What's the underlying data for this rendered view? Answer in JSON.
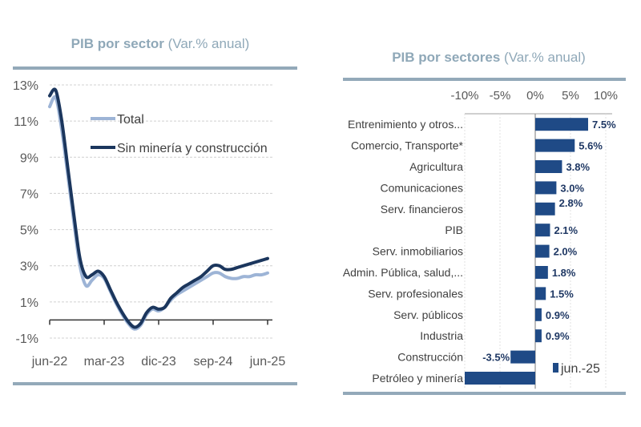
{
  "chart_data": [
    {
      "type": "line",
      "title_bold": "PIB por sector",
      "title_rest": " (Var.% anual)",
      "xlabel": "",
      "ylabel": "",
      "ylim": [
        -1,
        13
      ],
      "yticks": [
        -1,
        1,
        3,
        5,
        7,
        9,
        11,
        13
      ],
      "ytick_labels": [
        "-1%",
        "1%",
        "3%",
        "5%",
        "7%",
        "9%",
        "11%",
        "13%"
      ],
      "xtick_labels": [
        "jun-22",
        "mar-23",
        "dic-23",
        "sep-24",
        "jun-25"
      ],
      "x_start": "jun-22",
      "x_end": "jun-25",
      "x_frequency": "monthly",
      "grid": true,
      "legend_position": "top-center",
      "series": [
        {
          "name": "Total",
          "color": "#9db4d6",
          "values": [
            11.8,
            12.3,
            10.5,
            8.0,
            5.4,
            3.0,
            1.9,
            2.2,
            2.5,
            2.3,
            1.6,
            0.9,
            0.3,
            -0.2,
            -0.5,
            -0.3,
            0.3,
            0.6,
            0.5,
            0.7,
            1.1,
            1.4,
            1.6,
            1.8,
            2.0,
            2.2,
            2.4,
            2.6,
            2.6,
            2.4,
            2.3,
            2.3,
            2.4,
            2.4,
            2.5,
            2.5,
            2.6
          ]
        },
        {
          "name": "Sin minería y construcción",
          "color": "#1b365d",
          "values": [
            12.4,
            12.7,
            11.0,
            8.4,
            5.8,
            3.4,
            2.4,
            2.5,
            2.7,
            2.4,
            1.7,
            1.0,
            0.4,
            -0.1,
            -0.4,
            -0.2,
            0.4,
            0.7,
            0.6,
            0.7,
            1.2,
            1.5,
            1.8,
            2.0,
            2.2,
            2.4,
            2.7,
            3.0,
            3.0,
            2.8,
            2.8,
            2.9,
            3.0,
            3.1,
            3.2,
            3.3,
            3.4
          ]
        }
      ]
    },
    {
      "type": "bar",
      "orientation": "horizontal",
      "title_bold": "PIB por sectores",
      "title_rest": " (Var.% anual)",
      "xlim": [
        -10,
        10
      ],
      "xticks": [
        -10,
        -5,
        0,
        5,
        10
      ],
      "xtick_labels": [
        "-10%",
        "-5%",
        "0%",
        "5%",
        "10%"
      ],
      "grid": true,
      "legend_position": "bottom-right",
      "series": [
        {
          "name": "jun.-25",
          "color": "#1f4a86",
          "categories": [
            "Entrenimiento y otros...",
            "Comercio, Transporte*",
            "Agricultura",
            "Comunicaciones",
            "Serv. financieros",
            "PIB",
            "Serv. inmobiliarios",
            "Admin. Pública, salud,...",
            "Serv. profesionales",
            "Serv. públicos",
            "Industria",
            "Construcción",
            "Petróleo y minería"
          ],
          "values": [
            7.5,
            5.6,
            3.8,
            3.0,
            2.8,
            2.1,
            2.0,
            1.8,
            1.5,
            0.9,
            0.9,
            -3.5,
            -10
          ],
          "data_labels": [
            "7.5%",
            "5.6%",
            "3.8%",
            "3.0%",
            "2.8%",
            "2.1%",
            "2.0%",
            "1.8%",
            "1.5%",
            "0.9%",
            "0.9%",
            "-3.5%",
            ""
          ]
        }
      ]
    }
  ]
}
